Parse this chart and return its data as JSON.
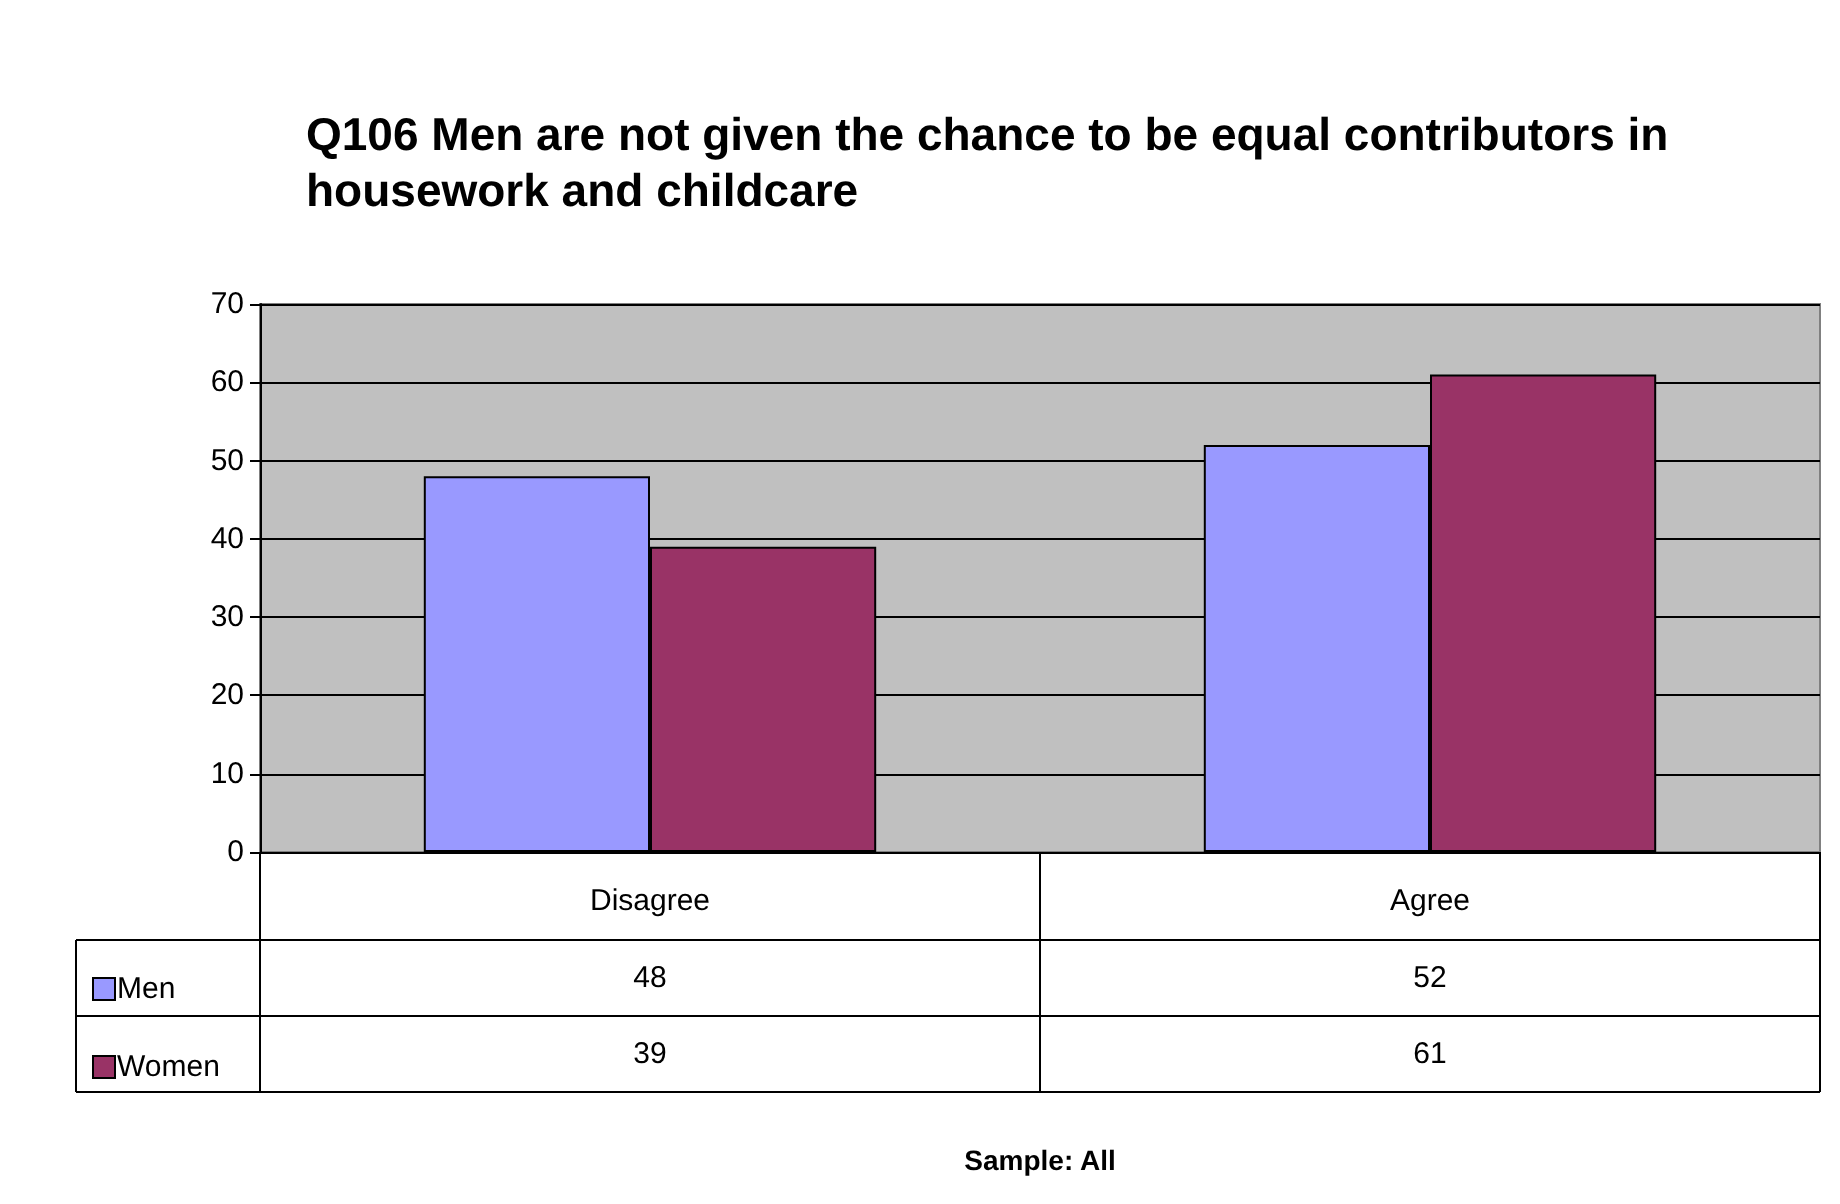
{
  "chart_data": {
    "type": "bar",
    "title": "Q106 Men are not given the chance to be equal contributors in housework and childcare",
    "categories": [
      "Disagree",
      "Agree"
    ],
    "series": [
      {
        "name": "Men",
        "color": "#9999ff",
        "values": [
          48,
          52
        ]
      },
      {
        "name": "Women",
        "color": "#993366",
        "values": [
          39,
          61
        ]
      }
    ],
    "ylim": [
      0,
      70
    ],
    "yticks": [
      0,
      10,
      20,
      30,
      40,
      50,
      60,
      70
    ],
    "grid": "y",
    "legend": "bottom left",
    "data_labels": true,
    "annotations": [
      "Sample: All"
    ]
  }
}
